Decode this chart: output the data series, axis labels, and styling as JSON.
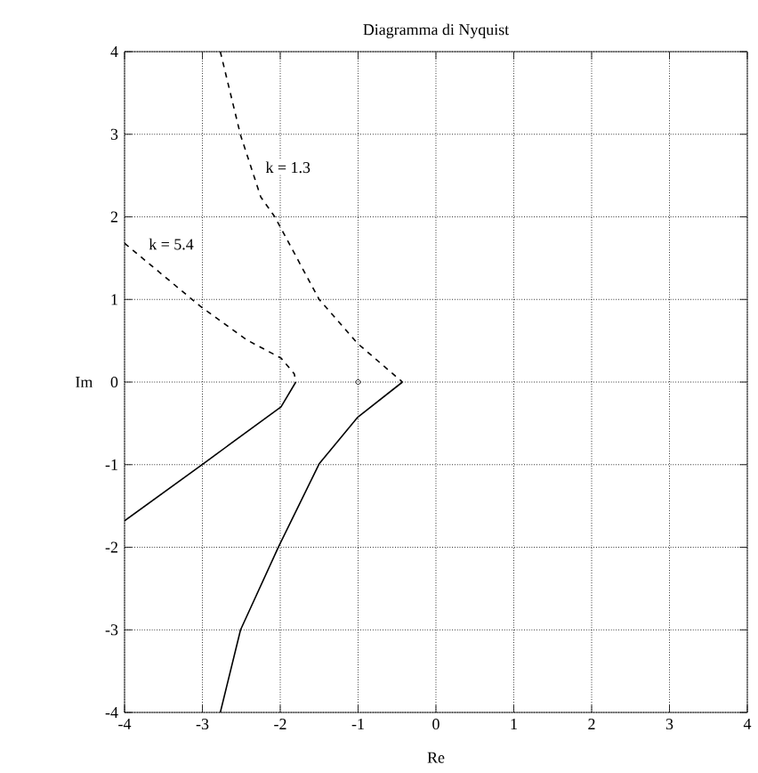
{
  "chart_data": {
    "type": "line",
    "title": "Diagramma di Nyquist",
    "xlabel": "Re",
    "ylabel": "Im",
    "xlim": [
      -4,
      4
    ],
    "ylim": [
      -4,
      4
    ],
    "xticks": [
      -4,
      -3,
      -2,
      -1,
      0,
      1,
      2,
      3,
      4
    ],
    "yticks": [
      -4,
      -3,
      -2,
      -1,
      0,
      1,
      2,
      3,
      4
    ],
    "grid": true,
    "marker": "none",
    "series": [
      {
        "color": "#000000",
        "line_style": "dashed",
        "x": [
          -2.77,
          -2.51,
          -2.25,
          -2.07,
          -1.5,
          -1.01,
          -0.43
        ],
        "values": [
          4,
          2.99,
          2.24,
          2,
          1,
          0.47,
          0
        ]
      },
      {
        "color": "#000000",
        "line_style": "solid",
        "x": [
          -0.43,
          -1.01,
          -1.5,
          -2.02,
          -2.51,
          -2.77
        ],
        "values": [
          0,
          -0.43,
          -0.99,
          -1.99,
          -3,
          -4
        ]
      },
      {
        "color": "#000000",
        "line_style": "dashed",
        "x": [
          -4,
          -3.03,
          -2.43,
          -1.99,
          -1.82,
          -1.8
        ],
        "values": [
          1.68,
          0.92,
          0.51,
          0.29,
          0.1,
          0
        ]
      },
      {
        "color": "#000000",
        "line_style": "solid",
        "x": [
          -1.8,
          -1.99,
          -2.99,
          -4
        ],
        "values": [
          0,
          -0.3,
          -0.99,
          -1.68
        ]
      },
      {
        "type": "scatter",
        "marker": "circle",
        "color": "#000000",
        "x": [
          -1
        ],
        "values": [
          0
        ]
      }
    ],
    "annotations": [
      {
        "text": "k = 1.3",
        "x": -1.9,
        "y": 2.6
      },
      {
        "text": "k = 5.4",
        "x": -3.4,
        "y": 1.67
      }
    ]
  }
}
